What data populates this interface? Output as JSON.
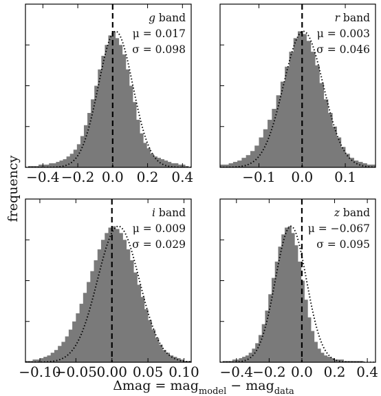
{
  "figure": {
    "ylabel": "frequency",
    "xlabel": {
      "main": "Δmag = mag",
      "sub1": "model",
      "minus": " − mag",
      "sub2": "data"
    }
  },
  "colors": {
    "bar": "#7a7a7a",
    "fit": "#000000",
    "marker": "#000000",
    "axis": "#000000"
  },
  "chart_data": [
    {
      "type": "bar",
      "band": "g",
      "label_suffix": " band",
      "mu_label": "μ = 0.017",
      "sigma_label": "σ = 0.098",
      "mu": 0.017,
      "sigma": 0.098,
      "xlim": [
        -0.5,
        0.45
      ],
      "xticks": [
        -0.4,
        -0.2,
        0.0,
        0.2,
        0.4
      ],
      "xtick_labels": [
        "−0.4",
        "−0.2",
        "0.0",
        "0.2",
        "0.4"
      ],
      "bins": [
        -0.475,
        -0.455,
        -0.435,
        -0.415,
        -0.395,
        -0.375,
        -0.355,
        -0.335,
        -0.315,
        -0.295,
        -0.275,
        -0.255,
        -0.235,
        -0.215,
        -0.195,
        -0.175,
        -0.155,
        -0.135,
        -0.115,
        -0.095,
        -0.075,
        -0.055,
        -0.035,
        -0.015,
        0.005,
        0.025,
        0.045,
        0.065,
        0.085,
        0.105,
        0.125,
        0.145,
        0.165,
        0.185,
        0.205,
        0.225,
        0.245,
        0.265,
        0.285,
        0.305,
        0.325,
        0.345,
        0.365,
        0.385,
        0.405,
        0.425
      ],
      "values": [
        0.01,
        0.01,
        0.01,
        0.02,
        0.02,
        0.02,
        0.03,
        0.03,
        0.04,
        0.05,
        0.06,
        0.08,
        0.1,
        0.13,
        0.17,
        0.23,
        0.31,
        0.4,
        0.5,
        0.6,
        0.72,
        0.82,
        0.9,
        0.97,
        1.0,
        0.95,
        0.9,
        0.83,
        0.72,
        0.6,
        0.48,
        0.35,
        0.25,
        0.18,
        0.14,
        0.1,
        0.08,
        0.07,
        0.06,
        0.05,
        0.04,
        0.03,
        0.03,
        0.02,
        0.02,
        0.01
      ],
      "ylim": [
        0,
        1.2
      ]
    },
    {
      "type": "bar",
      "band": "r",
      "label_suffix": " band",
      "mu_label": "μ = 0.003",
      "sigma_label": "σ = 0.046",
      "mu": 0.003,
      "sigma": 0.046,
      "xlim": [
        -0.19,
        0.17
      ],
      "xticks": [
        -0.1,
        0.0,
        0.1
      ],
      "xtick_labels": [
        "−0.1",
        "0.0",
        "0.1"
      ],
      "bins": [
        -0.185,
        -0.175,
        -0.165,
        -0.155,
        -0.145,
        -0.135,
        -0.125,
        -0.115,
        -0.105,
        -0.095,
        -0.085,
        -0.075,
        -0.065,
        -0.055,
        -0.045,
        -0.035,
        -0.025,
        -0.015,
        -0.005,
        0.005,
        0.015,
        0.025,
        0.035,
        0.045,
        0.055,
        0.065,
        0.075,
        0.085,
        0.095,
        0.105,
        0.115,
        0.125,
        0.135,
        0.145,
        0.155,
        0.165
      ],
      "values": [
        0.02,
        0.02,
        0.03,
        0.04,
        0.05,
        0.07,
        0.09,
        0.12,
        0.16,
        0.22,
        0.28,
        0.35,
        0.43,
        0.53,
        0.63,
        0.74,
        0.85,
        0.95,
        1.0,
        0.98,
        0.93,
        0.85,
        0.75,
        0.62,
        0.5,
        0.4,
        0.3,
        0.22,
        0.15,
        0.1,
        0.07,
        0.05,
        0.04,
        0.03,
        0.02,
        0.02
      ],
      "ylim": [
        0,
        1.2
      ]
    },
    {
      "type": "bar",
      "band": "i",
      "label_suffix": " band",
      "mu_label": "μ = 0.009",
      "sigma_label": "σ = 0.029",
      "mu": 0.009,
      "sigma": 0.029,
      "xlim": [
        -0.12,
        0.11
      ],
      "xticks": [
        -0.1,
        -0.05,
        0.0,
        0.05,
        0.1
      ],
      "xtick_labels": [
        "−0.10",
        "−0.05",
        "0.00",
        "0.05",
        "0.10"
      ],
      "bins": [
        -0.1175,
        -0.1125,
        -0.1075,
        -0.1025,
        -0.0975,
        -0.0925,
        -0.0875,
        -0.0825,
        -0.0775,
        -0.0725,
        -0.0675,
        -0.0625,
        -0.0575,
        -0.0525,
        -0.0475,
        -0.0425,
        -0.0375,
        -0.0325,
        -0.0275,
        -0.0225,
        -0.0175,
        -0.0125,
        -0.0075,
        -0.0025,
        0.0025,
        0.0075,
        0.0125,
        0.0175,
        0.0225,
        0.0275,
        0.0325,
        0.0375,
        0.0425,
        0.0475,
        0.0525,
        0.0575,
        0.0625,
        0.0675,
        0.0725,
        0.0775,
        0.0825,
        0.0875,
        0.0925,
        0.0975,
        0.1025,
        0.1075
      ],
      "values": [
        0.01,
        0.01,
        0.02,
        0.02,
        0.03,
        0.04,
        0.05,
        0.07,
        0.09,
        0.12,
        0.15,
        0.19,
        0.24,
        0.3,
        0.36,
        0.43,
        0.51,
        0.59,
        0.67,
        0.75,
        0.83,
        0.9,
        0.95,
        0.99,
        1.0,
        0.98,
        0.95,
        0.9,
        0.83,
        0.75,
        0.66,
        0.57,
        0.48,
        0.39,
        0.31,
        0.24,
        0.18,
        0.13,
        0.09,
        0.07,
        0.05,
        0.04,
        0.03,
        0.02,
        0.01,
        0.01
      ],
      "ylim": [
        0,
        1.2
      ]
    },
    {
      "type": "bar",
      "band": "z",
      "label_suffix": " band",
      "mu_label": "μ = −0.067",
      "sigma_label": "σ = 0.095",
      "mu": -0.067,
      "sigma": 0.095,
      "xlim": [
        -0.5,
        0.45
      ],
      "xticks": [
        -0.4,
        -0.2,
        0.0,
        0.2,
        0.4
      ],
      "xtick_labels": [
        "−0.4",
        "−0.2",
        "0.0",
        "0.2",
        "0.4"
      ],
      "bins": [
        -0.475,
        -0.455,
        -0.435,
        -0.415,
        -0.395,
        -0.375,
        -0.355,
        -0.335,
        -0.315,
        -0.295,
        -0.275,
        -0.255,
        -0.235,
        -0.215,
        -0.195,
        -0.175,
        -0.155,
        -0.135,
        -0.115,
        -0.095,
        -0.075,
        -0.055,
        -0.035,
        -0.015,
        0.005,
        0.025,
        0.045,
        0.065,
        0.085,
        0.105,
        0.125,
        0.145,
        0.165,
        0.185,
        0.205,
        0.225,
        0.245,
        0.265,
        0.285,
        0.305,
        0.325,
        0.345,
        0.365,
        0.385,
        0.405,
        0.425
      ],
      "values": [
        0.01,
        0.01,
        0.01,
        0.02,
        0.02,
        0.03,
        0.04,
        0.05,
        0.07,
        0.1,
        0.14,
        0.2,
        0.28,
        0.38,
        0.5,
        0.62,
        0.74,
        0.85,
        0.94,
        0.99,
        1.0,
        0.95,
        0.86,
        0.74,
        0.6,
        0.46,
        0.33,
        0.23,
        0.15,
        0.1,
        0.07,
        0.05,
        0.04,
        0.03,
        0.02,
        0.02,
        0.02,
        0.01,
        0.01,
        0.01,
        0.01,
        0.01,
        0.01,
        0.0,
        0.0,
        0.0
      ],
      "ylim": [
        0,
        1.2
      ]
    }
  ]
}
